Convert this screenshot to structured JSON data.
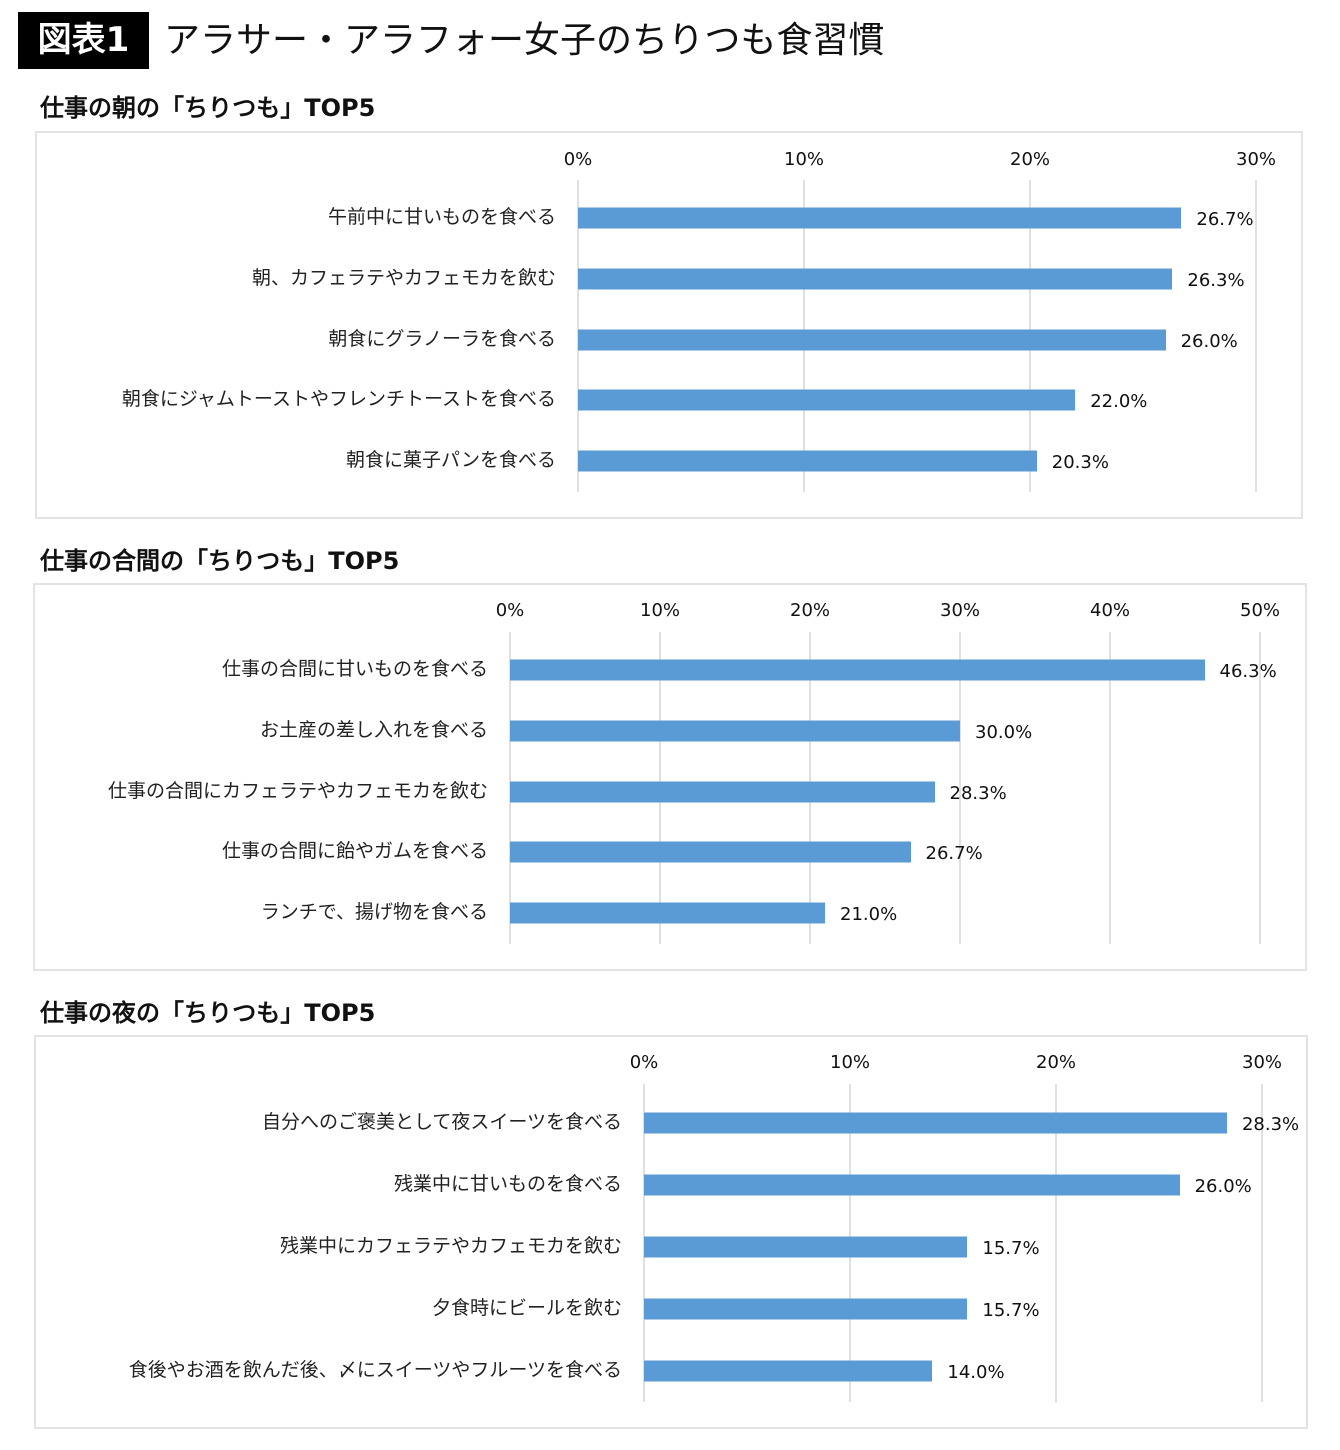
{
  "header": {
    "badge": "図表1",
    "title": "アラサー・アラフォー女子のちりつも食習慣"
  },
  "colors": {
    "bar": "#5b9bd5"
  },
  "chart_data": [
    {
      "type": "bar",
      "orientation": "horizontal",
      "title": "仕事の朝の「ちりつも」TOP5",
      "xlim": [
        0,
        30
      ],
      "ticks": [
        "0%",
        "10%",
        "20%",
        "30%"
      ],
      "tick_values": [
        0,
        10,
        20,
        30
      ],
      "categories": [
        "午前中に甘いものを食べる",
        "朝、カフェラテやカフェモカを飲む",
        "朝食にグラノーラを食べる",
        "朝食にジャムトーストやフレンチトーストを食べる",
        "朝食に菓子パンを食べる"
      ],
      "values": [
        26.7,
        26.3,
        26.0,
        22.0,
        20.3
      ],
      "labels": [
        "26.7%",
        "26.3%",
        "26.0%",
        "22.0%",
        "20.3%"
      ],
      "grid": true
    },
    {
      "type": "bar",
      "orientation": "horizontal",
      "title": "仕事の合間の「ちりつも」TOP5",
      "xlim": [
        0,
        50
      ],
      "ticks": [
        "0%",
        "10%",
        "20%",
        "30%",
        "40%",
        "50%"
      ],
      "tick_values": [
        0,
        10,
        20,
        30,
        40,
        50
      ],
      "categories": [
        "仕事の合間に甘いものを食べる",
        "お土産の差し入れを食べる",
        "仕事の合間にカフェラテやカフェモカを飲む",
        "仕事の合間に飴やガムを食べる",
        "ランチで、揚げ物を食べる"
      ],
      "values": [
        46.3,
        30.0,
        28.3,
        26.7,
        21.0
      ],
      "labels": [
        "46.3%",
        "30.0%",
        "28.3%",
        "26.7%",
        "21.0%"
      ],
      "grid": true
    },
    {
      "type": "bar",
      "orientation": "horizontal",
      "title": "仕事の夜の「ちりつも」TOP5",
      "xlim": [
        0,
        30
      ],
      "ticks": [
        "0%",
        "10%",
        "20%",
        "30%"
      ],
      "tick_values": [
        0,
        10,
        20,
        30
      ],
      "categories": [
        "自分へのご褒美として夜スイーツを食べる",
        "残業中に甘いものを食べる",
        "残業中にカフェラテやカフェモカを飲む",
        "夕食時にビールを飲む",
        "食後やお酒を飲んだ後、〆にスイーツやフルーツを食べる"
      ],
      "values": [
        28.3,
        26.0,
        15.7,
        15.7,
        14.0
      ],
      "labels": [
        "28.3%",
        "26.0%",
        "15.7%",
        "15.7%",
        "14.0%"
      ],
      "grid": true
    }
  ]
}
